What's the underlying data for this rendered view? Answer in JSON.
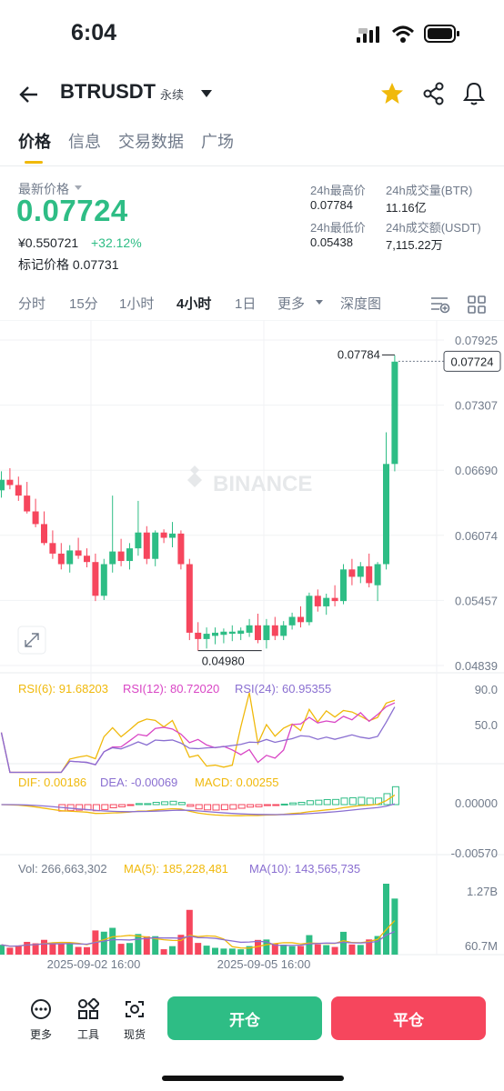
{
  "status_bar": {
    "time": "6:04"
  },
  "header": {
    "symbol": "BTRUSDT",
    "contract_type": "永续"
  },
  "tabs": [
    {
      "label": "价格"
    },
    {
      "label": "信息"
    },
    {
      "label": "交易数据"
    },
    {
      "label": "广场"
    }
  ],
  "ticker": {
    "last_price_label": "最新价格",
    "last_price": "0.07724",
    "cny_price": "¥0.550721",
    "change_pct": "+32.12%",
    "mark_price_label": "标记价格",
    "mark_price": "0.07731",
    "high_label": "24h最高价",
    "high": "0.07784",
    "low_label": "24h最低价",
    "low": "0.05438",
    "volume_label": "24h成交量(BTR)",
    "volume": "11.16亿",
    "turnover_label": "24h成交额(USDT)",
    "turnover": "7,115.22万"
  },
  "intervals": [
    {
      "label": "分时"
    },
    {
      "label": "15分"
    },
    {
      "label": "1小时"
    },
    {
      "label": "4小时"
    },
    {
      "label": "1日"
    },
    {
      "label": "更多"
    },
    {
      "label": "深度图"
    }
  ],
  "colors": {
    "up": "#2ebd85",
    "down": "#f6465d",
    "accent": "#f0b90b",
    "rsi6": "#f0b90b",
    "rsi12": "#d946c5",
    "rsi24": "#8a6fd1"
  },
  "chart_data": {
    "type": "candlestick",
    "watermark": "BINANCE",
    "price_axis_ticks": [
      "0.07925",
      "0.07307",
      "0.06690",
      "0.06074",
      "0.05457",
      "0.04839"
    ],
    "ylim": [
      0.04839,
      0.07925
    ],
    "current_price_tag": "0.07724",
    "high_marker": "0.07784",
    "low_marker": "0.04980",
    "time_labels": [
      "2025-09-02 16:00",
      "2025-09-05 16:00"
    ],
    "candles": [
      [
        0.065,
        0.0668,
        0.0643,
        0.066
      ],
      [
        0.066,
        0.0671,
        0.0651,
        0.0655
      ],
      [
        0.0655,
        0.0663,
        0.064,
        0.0645
      ],
      [
        0.0645,
        0.0658,
        0.0628,
        0.063
      ],
      [
        0.063,
        0.0642,
        0.0615,
        0.0618
      ],
      [
        0.0618,
        0.063,
        0.0598,
        0.06
      ],
      [
        0.06,
        0.0612,
        0.0585,
        0.059
      ],
      [
        0.059,
        0.06,
        0.0575,
        0.058
      ],
      [
        0.058,
        0.0598,
        0.0572,
        0.0593
      ],
      [
        0.0593,
        0.0605,
        0.0585,
        0.0588
      ],
      [
        0.0588,
        0.0595,
        0.0577,
        0.0582
      ],
      [
        0.0582,
        0.059,
        0.0545,
        0.055
      ],
      [
        0.055,
        0.0585,
        0.0546,
        0.058
      ],
      [
        0.058,
        0.0645,
        0.0572,
        0.0592
      ],
      [
        0.0592,
        0.0604,
        0.0578,
        0.0583
      ],
      [
        0.0583,
        0.06,
        0.0575,
        0.0595
      ],
      [
        0.0595,
        0.064,
        0.0588,
        0.061
      ],
      [
        0.061,
        0.0616,
        0.058,
        0.0585
      ],
      [
        0.0585,
        0.0612,
        0.0578,
        0.061
      ],
      [
        0.061,
        0.0613,
        0.06,
        0.0605
      ],
      [
        0.0605,
        0.062,
        0.0596,
        0.0609
      ],
      [
        0.0609,
        0.0612,
        0.0575,
        0.058
      ],
      [
        0.058,
        0.0585,
        0.0508,
        0.0515
      ],
      [
        0.0515,
        0.0525,
        0.0498,
        0.0509
      ],
      [
        0.0509,
        0.052,
        0.05,
        0.0514
      ],
      [
        0.0512,
        0.052,
        0.0504,
        0.0515
      ],
      [
        0.0513,
        0.0519,
        0.0505,
        0.0516
      ],
      [
        0.0514,
        0.0522,
        0.0507,
        0.0516
      ],
      [
        0.0514,
        0.052,
        0.0508,
        0.0517
      ],
      [
        0.0515,
        0.0528,
        0.0511,
        0.0522
      ],
      [
        0.0522,
        0.0533,
        0.0505,
        0.0508
      ],
      [
        0.0508,
        0.0528,
        0.05,
        0.0522
      ],
      [
        0.0522,
        0.053,
        0.0508,
        0.0512
      ],
      [
        0.0512,
        0.0526,
        0.0508,
        0.0522
      ],
      [
        0.0522,
        0.0534,
        0.0518,
        0.053
      ],
      [
        0.053,
        0.054,
        0.052,
        0.0525
      ],
      [
        0.0525,
        0.0553,
        0.0522,
        0.055
      ],
      [
        0.055,
        0.0556,
        0.0535,
        0.054
      ],
      [
        0.054,
        0.0552,
        0.0532,
        0.0548
      ],
      [
        0.0548,
        0.056,
        0.054,
        0.0545
      ],
      [
        0.0545,
        0.058,
        0.0542,
        0.0575
      ],
      [
        0.0575,
        0.0585,
        0.056,
        0.0568
      ],
      [
        0.0568,
        0.0582,
        0.0562,
        0.0578
      ],
      [
        0.0578,
        0.059,
        0.0558,
        0.0562
      ],
      [
        0.056,
        0.0582,
        0.0545,
        0.058
      ],
      [
        0.058,
        0.0705,
        0.0575,
        0.0675
      ],
      [
        0.0675,
        0.0778,
        0.0668,
        0.0772
      ]
    ],
    "indicators": {
      "rsi": {
        "rsi6_label": "RSI(6): 91.68203",
        "rsi12_label": "RSI(12): 80.72020",
        "rsi24_label": "RSI(24): 60.95355",
        "ticks": [
          "90.0",
          "50.0"
        ]
      },
      "macd": {
        "dif_label": "DIF: 0.00186",
        "dea_label": "DEA: -0.00069",
        "macd_label": "MACD: 0.00255",
        "ticks": [
          "0.00000",
          "-0.00570"
        ]
      },
      "volume": {
        "vol_label": "Vol: 266,663,302",
        "ma5_label": "MA(5): 185,228,481",
        "ma10_label": "MA(10): 143,565,735",
        "ticks": [
          "1.27B",
          "60.7M"
        ]
      }
    }
  },
  "bottom_bar": {
    "more_label": "更多",
    "tools_label": "工具",
    "spot_label": "现货",
    "open_label": "开仓",
    "close_label": "平仓"
  }
}
